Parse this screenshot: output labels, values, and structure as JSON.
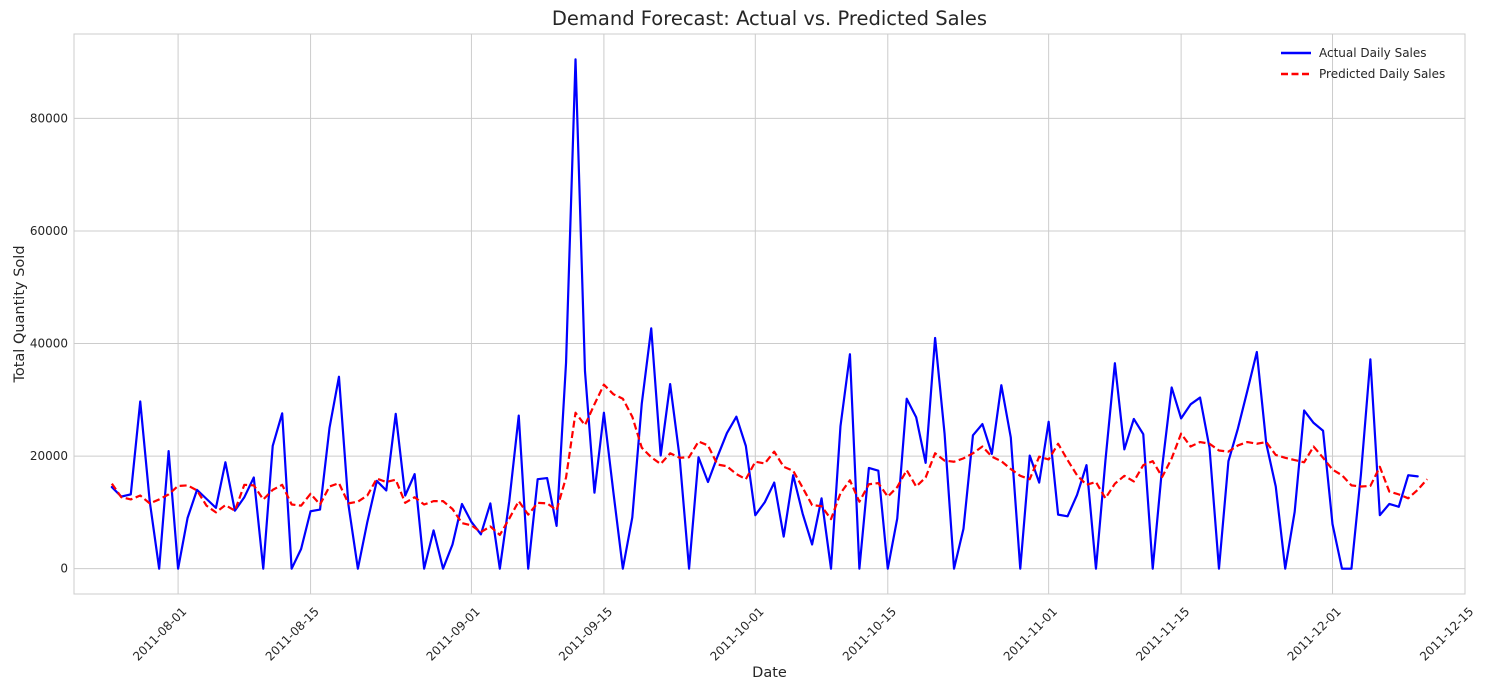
{
  "chart_data": {
    "type": "line",
    "title": "Demand Forecast: Actual vs. Predicted Sales",
    "xlabel": "Date",
    "ylabel": "Total Quantity Sold",
    "x_start": "2011-07-25",
    "x_end": "2011-12-09",
    "xlim": [
      "2011-07-21",
      "2011-12-15"
    ],
    "ylim": [
      -4500,
      95000
    ],
    "x_ticks": [
      "2011-08-01",
      "2011-08-15",
      "2011-09-01",
      "2011-09-15",
      "2011-10-01",
      "2011-10-15",
      "2011-11-01",
      "2011-11-15",
      "2011-12-01",
      "2011-12-15"
    ],
    "y_ticks": [
      0,
      20000,
      40000,
      60000,
      80000
    ],
    "y_tick_labels": [
      "0",
      "20000",
      "40000",
      "60000",
      "80000"
    ],
    "grid": true,
    "legend_position": "top-right",
    "series": [
      {
        "name": "Actual Daily Sales",
        "color": "#0000ff",
        "style": "solid",
        "values": [
          14500,
          12800,
          13200,
          29700,
          12000,
          0,
          20900,
          0,
          9000,
          14000,
          12400,
          10800,
          18900,
          10300,
          12700,
          16200,
          0,
          21800,
          27600,
          0,
          3500,
          10200,
          10500,
          25000,
          34100,
          11400,
          0,
          8300,
          15600,
          13900,
          27500,
          13000,
          16800,
          0,
          6800,
          0,
          4300,
          11500,
          8300,
          6100,
          11600,
          0,
          12000,
          27200,
          0,
          15900,
          16100,
          7600,
          36600,
          90500,
          35100,
          13500,
          27700,
          13600,
          0,
          9100,
          29300,
          42700,
          20100,
          32800,
          19800,
          0,
          19800,
          15400,
          19900,
          24100,
          27000,
          21800,
          9500,
          11800,
          15300,
          5700,
          16600,
          9800,
          4300,
          12500,
          0,
          25300,
          38100,
          0,
          17900,
          17400,
          0,
          8900,
          30200,
          26900,
          18800,
          41000,
          24000,
          0,
          7100,
          23700,
          25700,
          20400,
          32600,
          23300,
          0,
          20100,
          15300,
          26100,
          9600,
          9300,
          13100,
          18400,
          0,
          19200,
          36500,
          21200,
          26600,
          23900,
          0,
          18100,
          32200,
          26700,
          29200,
          30400,
          21500,
          0,
          19100,
          24900,
          31600,
          38500,
          22200,
          14600,
          0,
          10100,
          28100,
          25900,
          24500,
          7900,
          0,
          0,
          16700,
          37200,
          9500,
          11500,
          11000,
          16600,
          16400
        ],
        "x_start": "2011-07-25"
      },
      {
        "name": "Predicted Daily Sales",
        "color": "#ff0000",
        "style": "dashed",
        "values": [
          15100,
          12700,
          12300,
          13000,
          11600,
          12300,
          13200,
          14700,
          14800,
          13900,
          11200,
          10000,
          11300,
          10300,
          14900,
          14800,
          12300,
          14000,
          14900,
          11400,
          11200,
          13300,
          11400,
          14600,
          15200,
          11600,
          11900,
          13000,
          16000,
          15400,
          15800,
          11700,
          12700,
          11400,
          12000,
          12000,
          10600,
          8100,
          7700,
          6500,
          7500,
          6000,
          8900,
          12000,
          9600,
          11700,
          11600,
          10400,
          16200,
          27700,
          25500,
          29200,
          32700,
          31000,
          30200,
          27000,
          21500,
          19800,
          18600,
          20500,
          19700,
          19800,
          22600,
          21900,
          18500,
          18200,
          16800,
          15900,
          19000,
          18700,
          20800,
          18100,
          17400,
          14400,
          11300,
          11100,
          8800,
          13400,
          15700,
          11900,
          15000,
          15200,
          12800,
          14500,
          17500,
          14600,
          16200,
          20500,
          19200,
          19000,
          19600,
          20500,
          21700,
          19900,
          19100,
          17700,
          16500,
          15900,
          19900,
          19400,
          22200,
          19300,
          16600,
          14900,
          15400,
          12500,
          15100,
          16500,
          15500,
          18400,
          19100,
          16300,
          19600,
          24000,
          21700,
          22500,
          22200,
          21000,
          20800,
          21900,
          22500,
          22200,
          22500,
          20200,
          19700,
          19300,
          18900,
          21700,
          19700,
          17600,
          16600,
          14800,
          14600,
          14700,
          18100,
          13700,
          13200,
          12500,
          14000,
          15900
        ],
        "x_start": "2011-07-25"
      }
    ]
  }
}
